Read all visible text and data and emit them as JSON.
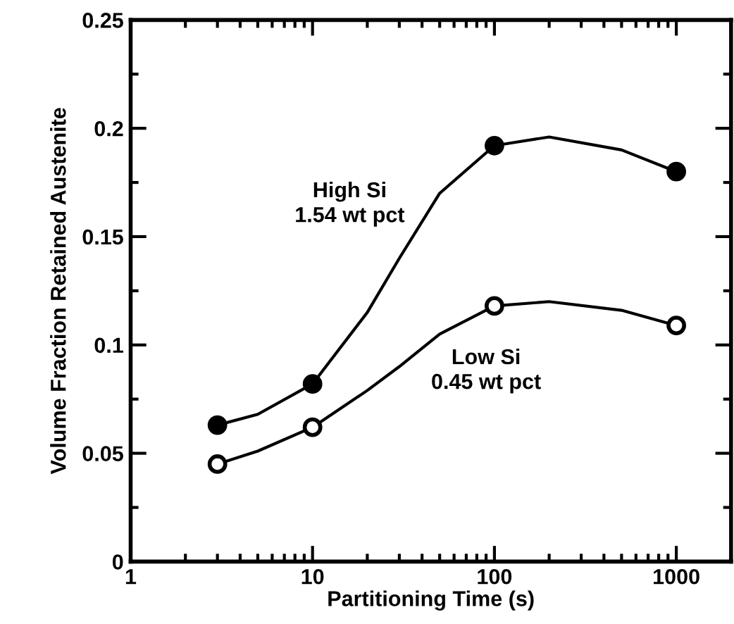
{
  "chart_data": {
    "type": "scatter",
    "xlabel": "Partitioning Time (s)",
    "ylabel": "Volume Fraction Retained Austenite",
    "log": "x",
    "xlim": [
      1,
      2000
    ],
    "xticks": [
      1,
      10,
      100,
      1000
    ],
    "ylim": [
      0,
      0.25
    ],
    "yticks": [
      0,
      0.05,
      0.1,
      0.15,
      0.2,
      0.25
    ],
    "grid": false,
    "legend": false,
    "line_style": "solid",
    "series": [
      {
        "type": "line",
        "name": "High Si\n1.54 wt pct",
        "marker": "none",
        "color": "#000000",
        "x": [
          3,
          5,
          10,
          20,
          30,
          50,
          100,
          200,
          500,
          1000
        ],
        "values": [
          0.063,
          0.068,
          0.082,
          0.115,
          0.14,
          0.17,
          0.192,
          0.196,
          0.19,
          0.18
        ]
      },
      {
        "type": "line",
        "name": "Low Si\n0.45 wt pct",
        "marker": "none",
        "color": "#000000",
        "x": [
          3,
          5,
          10,
          20,
          30,
          50,
          100,
          200,
          500,
          1000
        ],
        "values": [
          0.045,
          0.051,
          0.062,
          0.079,
          0.09,
          0.105,
          0.118,
          0.12,
          0.116,
          0.109
        ]
      },
      {
        "marker": "circle",
        "color": "#000000",
        "x": [
          3,
          10,
          100,
          1000
        ],
        "values": [
          0.063,
          0.082,
          0.192,
          0.18
        ]
      },
      {
        "marker": "circle",
        "color": "#ffffff",
        "x": [
          3,
          10,
          100,
          1000
        ],
        "values": [
          0.045,
          0.062,
          0.118,
          0.109
        ]
      }
    ]
  }
}
